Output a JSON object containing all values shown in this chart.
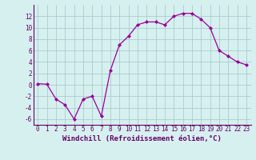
{
  "x": [
    0,
    1,
    2,
    3,
    4,
    5,
    6,
    7,
    8,
    9,
    10,
    11,
    12,
    13,
    14,
    15,
    16,
    17,
    18,
    19,
    20,
    21,
    22,
    23
  ],
  "y": [
    0.2,
    0.1,
    -2.5,
    -3.5,
    -6.0,
    -2.5,
    -2.0,
    -5.5,
    2.5,
    7.0,
    8.5,
    10.5,
    11.0,
    11.0,
    10.5,
    12.0,
    12.5,
    12.5,
    11.5,
    10.0,
    6.0,
    5.0,
    4.0,
    3.5
  ],
  "line_color": "#990099",
  "marker": "D",
  "marker_size": 2.0,
  "bg_color": "#d6f0f0",
  "grid_color": "#aacccc",
  "xlabel": "Windchill (Refroidissement éolien,°C)",
  "tick_color": "#660066",
  "xlim": [
    -0.5,
    23.5
  ],
  "ylim": [
    -7,
    14
  ],
  "yticks": [
    -6,
    -4,
    -2,
    0,
    2,
    4,
    6,
    8,
    10,
    12
  ],
  "xticks": [
    0,
    1,
    2,
    3,
    4,
    5,
    6,
    7,
    8,
    9,
    10,
    11,
    12,
    13,
    14,
    15,
    16,
    17,
    18,
    19,
    20,
    21,
    22,
    23
  ],
  "spine_color": "#660066",
  "tick_fontsize": 5.5,
  "xlabel_fontsize": 6.5
}
